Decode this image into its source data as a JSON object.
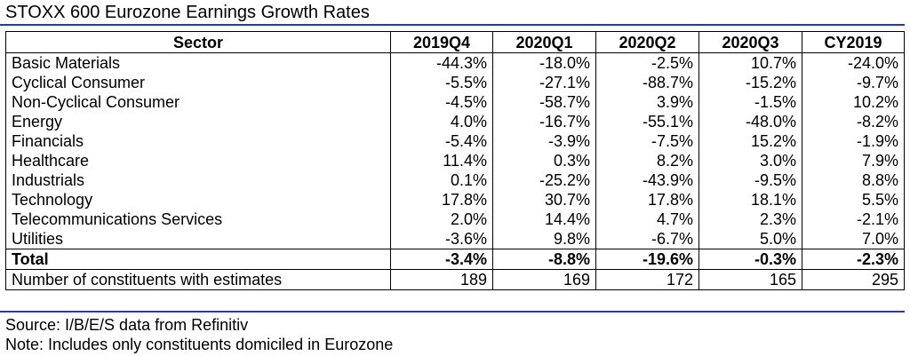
{
  "title": "STOXX 600 Eurozone Earnings Growth Rates",
  "table": {
    "headers": [
      "Sector",
      "2019Q4",
      "2020Q1",
      "2020Q2",
      "2020Q3",
      "CY2019"
    ],
    "rows": [
      [
        "Basic Materials",
        "-44.3%",
        "-18.0%",
        "-2.5%",
        "10.7%",
        "-24.0%"
      ],
      [
        "Cyclical Consumer",
        "-5.5%",
        "-27.1%",
        "-88.7%",
        "-15.2%",
        "-9.7%"
      ],
      [
        "Non-Cyclical Consumer",
        "-4.5%",
        "-58.7%",
        "3.9%",
        "-1.5%",
        "10.2%"
      ],
      [
        "Energy",
        "4.0%",
        "-16.7%",
        "-55.1%",
        "-48.0%",
        "-8.2%"
      ],
      [
        "Financials",
        "-5.4%",
        "-3.9%",
        "-7.5%",
        "15.2%",
        "-1.9%"
      ],
      [
        "Healthcare",
        "11.4%",
        "0.3%",
        "8.2%",
        "3.0%",
        "7.9%"
      ],
      [
        "Industrials",
        "0.1%",
        "-25.2%",
        "-43.9%",
        "-9.5%",
        "8.8%"
      ],
      [
        "Technology",
        "17.8%",
        "30.7%",
        "17.8%",
        "18.1%",
        "5.5%"
      ],
      [
        "Telecommunications Services",
        "2.0%",
        "14.4%",
        "4.7%",
        "2.3%",
        "-2.1%"
      ],
      [
        "Utilities",
        "-3.6%",
        "9.8%",
        "-6.7%",
        "5.0%",
        "7.0%"
      ],
      [
        "Total",
        "-3.4%",
        "-8.8%",
        "-19.6%",
        "-0.3%",
        "-2.3%"
      ],
      [
        "Number of constituents with estimates",
        "189",
        "169",
        "172",
        "165",
        "295"
      ]
    ]
  },
  "source": "Source: I/B/E/S data from Refinitiv",
  "note": "Note: Includes only constituents domiciled in Eurozone",
  "colors": {
    "rule": "#2b3a9a"
  }
}
